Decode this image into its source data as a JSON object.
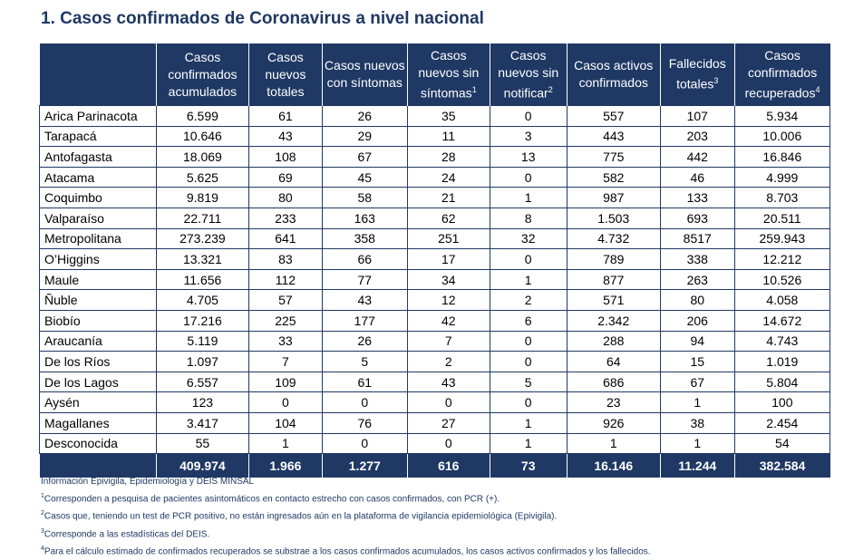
{
  "title": "1. Casos confirmados de Coronavirus a nivel nacional",
  "table": {
    "headers": [
      {
        "text": "",
        "sup": ""
      },
      {
        "text": "Casos confirmados acumulados",
        "sup": ""
      },
      {
        "text": "Casos nuevos totales",
        "sup": ""
      },
      {
        "text": "Casos nuevos con síntomas",
        "sup": ""
      },
      {
        "text": "Casos nuevos sin síntomas",
        "sup": "1"
      },
      {
        "text": "Casos nuevos sin notificar",
        "sup": "2"
      },
      {
        "text": "Casos activos confirmados",
        "sup": ""
      },
      {
        "text": "Fallecidos totales",
        "sup": "3"
      },
      {
        "text": "Casos confirmados recuperados",
        "sup": "4"
      }
    ],
    "rows": [
      [
        "Arica Parinacota",
        "6.599",
        "61",
        "26",
        "35",
        "0",
        "557",
        "107",
        "5.934"
      ],
      [
        "Tarapacá",
        "10.646",
        "43",
        "29",
        "11",
        "3",
        "443",
        "203",
        "10.006"
      ],
      [
        "Antofagasta",
        "18.069",
        "108",
        "67",
        "28",
        "13",
        "775",
        "442",
        "16.846"
      ],
      [
        "Atacama",
        "5.625",
        "69",
        "45",
        "24",
        "0",
        "582",
        "46",
        "4.999"
      ],
      [
        "Coquimbo",
        "9.819",
        "80",
        "58",
        "21",
        "1",
        "987",
        "133",
        "8.703"
      ],
      [
        "Valparaíso",
        "22.711",
        "233",
        "163",
        "62",
        "8",
        "1.503",
        "693",
        "20.511"
      ],
      [
        "Metropolitana",
        "273.239",
        "641",
        "358",
        "251",
        "32",
        "4.732",
        "8517",
        "259.943"
      ],
      [
        "O’Higgins",
        "13.321",
        "83",
        "66",
        "17",
        "0",
        "789",
        "338",
        "12.212"
      ],
      [
        "Maule",
        "11.656",
        "112",
        "77",
        "34",
        "1",
        "877",
        "263",
        "10.526"
      ],
      [
        "Ñuble",
        "4.705",
        "57",
        "43",
        "12",
        "2",
        "571",
        "80",
        "4.058"
      ],
      [
        "Biobío",
        "17.216",
        "225",
        "177",
        "42",
        "6",
        "2.342",
        "206",
        "14.672"
      ],
      [
        "Araucanía",
        "5.119",
        "33",
        "26",
        "7",
        "0",
        "288",
        "94",
        "4.743"
      ],
      [
        "De los Ríos",
        "1.097",
        "7",
        "5",
        "2",
        "0",
        "64",
        "15",
        "1.019"
      ],
      [
        "De los Lagos",
        "6.557",
        "109",
        "61",
        "43",
        "5",
        "686",
        "67",
        "5.804"
      ],
      [
        "Aysén",
        "123",
        "0",
        "0",
        "0",
        "0",
        "23",
        "1",
        "100"
      ],
      [
        "Magallanes",
        "3.417",
        "104",
        "76",
        "27",
        "1",
        "926",
        "38",
        "2.454"
      ],
      [
        "Desconocida",
        "55",
        "1",
        "0",
        "0",
        "1",
        "1",
        "1",
        "54"
      ]
    ],
    "totals": [
      "",
      "409.974",
      "1.966",
      "1.277",
      "616",
      "73",
      "16.146",
      "11.244",
      "382.584"
    ]
  },
  "notes": [
    {
      "sup": "",
      "text": "Información Epivigila, Epidemiología y DEIS MINSAL"
    },
    {
      "sup": "1",
      "text": "Corresponden a pesquisa de pacientes asintomáticos en contacto estrecho con casos confirmados, con PCR (+)."
    },
    {
      "sup": "2",
      "text": "Casos que, teniendo un test de PCR positivo, no están ingresados aún en la plataforma de vigilancia epidemiológica (Epivigila)."
    },
    {
      "sup": "3",
      "text": "Corresponde a las estadísticas del DEIS."
    },
    {
      "sup": "4",
      "text": "Para el cálculo estimado de confirmados recuperados se substrae a los casos confirmados acumulados, los casos activos confirmados y los fallecidos."
    }
  ]
}
